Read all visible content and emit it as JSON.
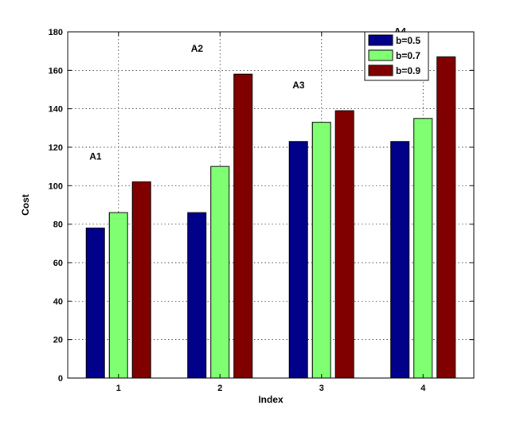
{
  "chart_data": {
    "type": "bar",
    "xlabel": "Index",
    "ylabel": "Cost",
    "categories": [
      "1",
      "2",
      "3",
      "4"
    ],
    "ylim": [
      0,
      180
    ],
    "yticks": [
      0,
      20,
      40,
      60,
      80,
      100,
      120,
      140,
      160,
      180
    ],
    "grid": true,
    "legend_position": "top-right",
    "series": [
      {
        "name": "b=0.5",
        "color": "#00008b",
        "values": [
          78,
          86,
          123,
          123
        ]
      },
      {
        "name": "b=0.7",
        "color": "#80ff73",
        "values": [
          86,
          110,
          133,
          135
        ]
      },
      {
        "name": "b=0.9",
        "color": "#800000",
        "values": [
          102,
          158,
          139,
          167
        ]
      }
    ],
    "annotations": [
      "A1",
      "A2",
      "A3",
      "A4"
    ]
  }
}
